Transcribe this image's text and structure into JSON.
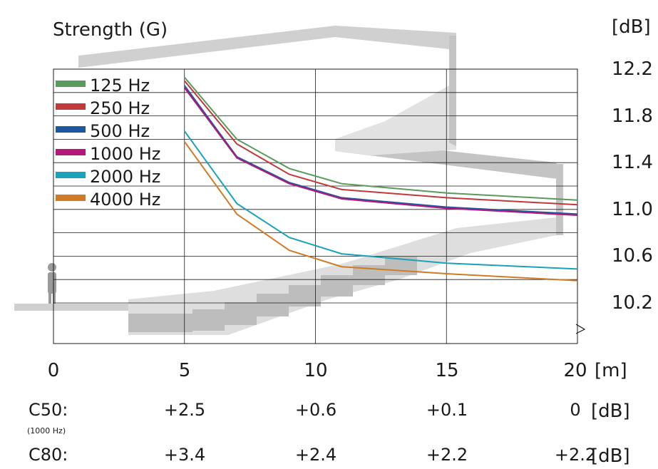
{
  "chart_data": {
    "type": "line",
    "title": "Strength (G)",
    "y_unit": "[dB]",
    "x_unit": "[m]",
    "xlim": [
      0,
      20
    ],
    "ylim": [
      9.8,
      12.4
    ],
    "x_ticks": [
      "0",
      "5",
      "10",
      "15",
      "20"
    ],
    "y_ticks": [
      "12.2",
      "11.8",
      "11.4",
      "11.0",
      "10.6",
      "10.2"
    ],
    "grid": true,
    "legend_position": "top-left",
    "x": [
      5,
      7,
      9,
      11,
      15,
      20
    ],
    "series": [
      {
        "name": "125 Hz",
        "color": "#5a9a5a",
        "values": [
          12.13,
          11.6,
          11.35,
          11.22,
          11.14,
          11.08
        ]
      },
      {
        "name": "250 Hz",
        "color": "#c0393b",
        "values": [
          12.1,
          11.56,
          11.3,
          11.17,
          11.1,
          11.04
        ]
      },
      {
        "name": "500 Hz",
        "color": "#1f56a0",
        "values": [
          12.06,
          11.45,
          11.23,
          11.1,
          11.02,
          10.96
        ]
      },
      {
        "name": "1000 Hz",
        "color": "#b5177a",
        "values": [
          12.04,
          11.44,
          11.22,
          11.09,
          11.01,
          10.95
        ]
      },
      {
        "name": "2000 Hz",
        "color": "#1aa3b8",
        "values": [
          11.67,
          11.05,
          10.76,
          10.62,
          10.54,
          10.49
        ]
      },
      {
        "name": "4000 Hz",
        "color": "#d07a26",
        "values": [
          11.58,
          10.96,
          10.65,
          10.51,
          10.45,
          10.39
        ]
      }
    ]
  },
  "tables": {
    "c50": {
      "label": "C50:",
      "note": "(1000 Hz)",
      "values": [
        "+2.5",
        "+0.6",
        "+0.1",
        "0"
      ],
      "unit": "[dB]"
    },
    "c80": {
      "label": "C80:",
      "values": [
        "+3.4",
        "+2.4",
        "+2.2",
        "+2.2"
      ],
      "unit": "[dB]"
    }
  }
}
